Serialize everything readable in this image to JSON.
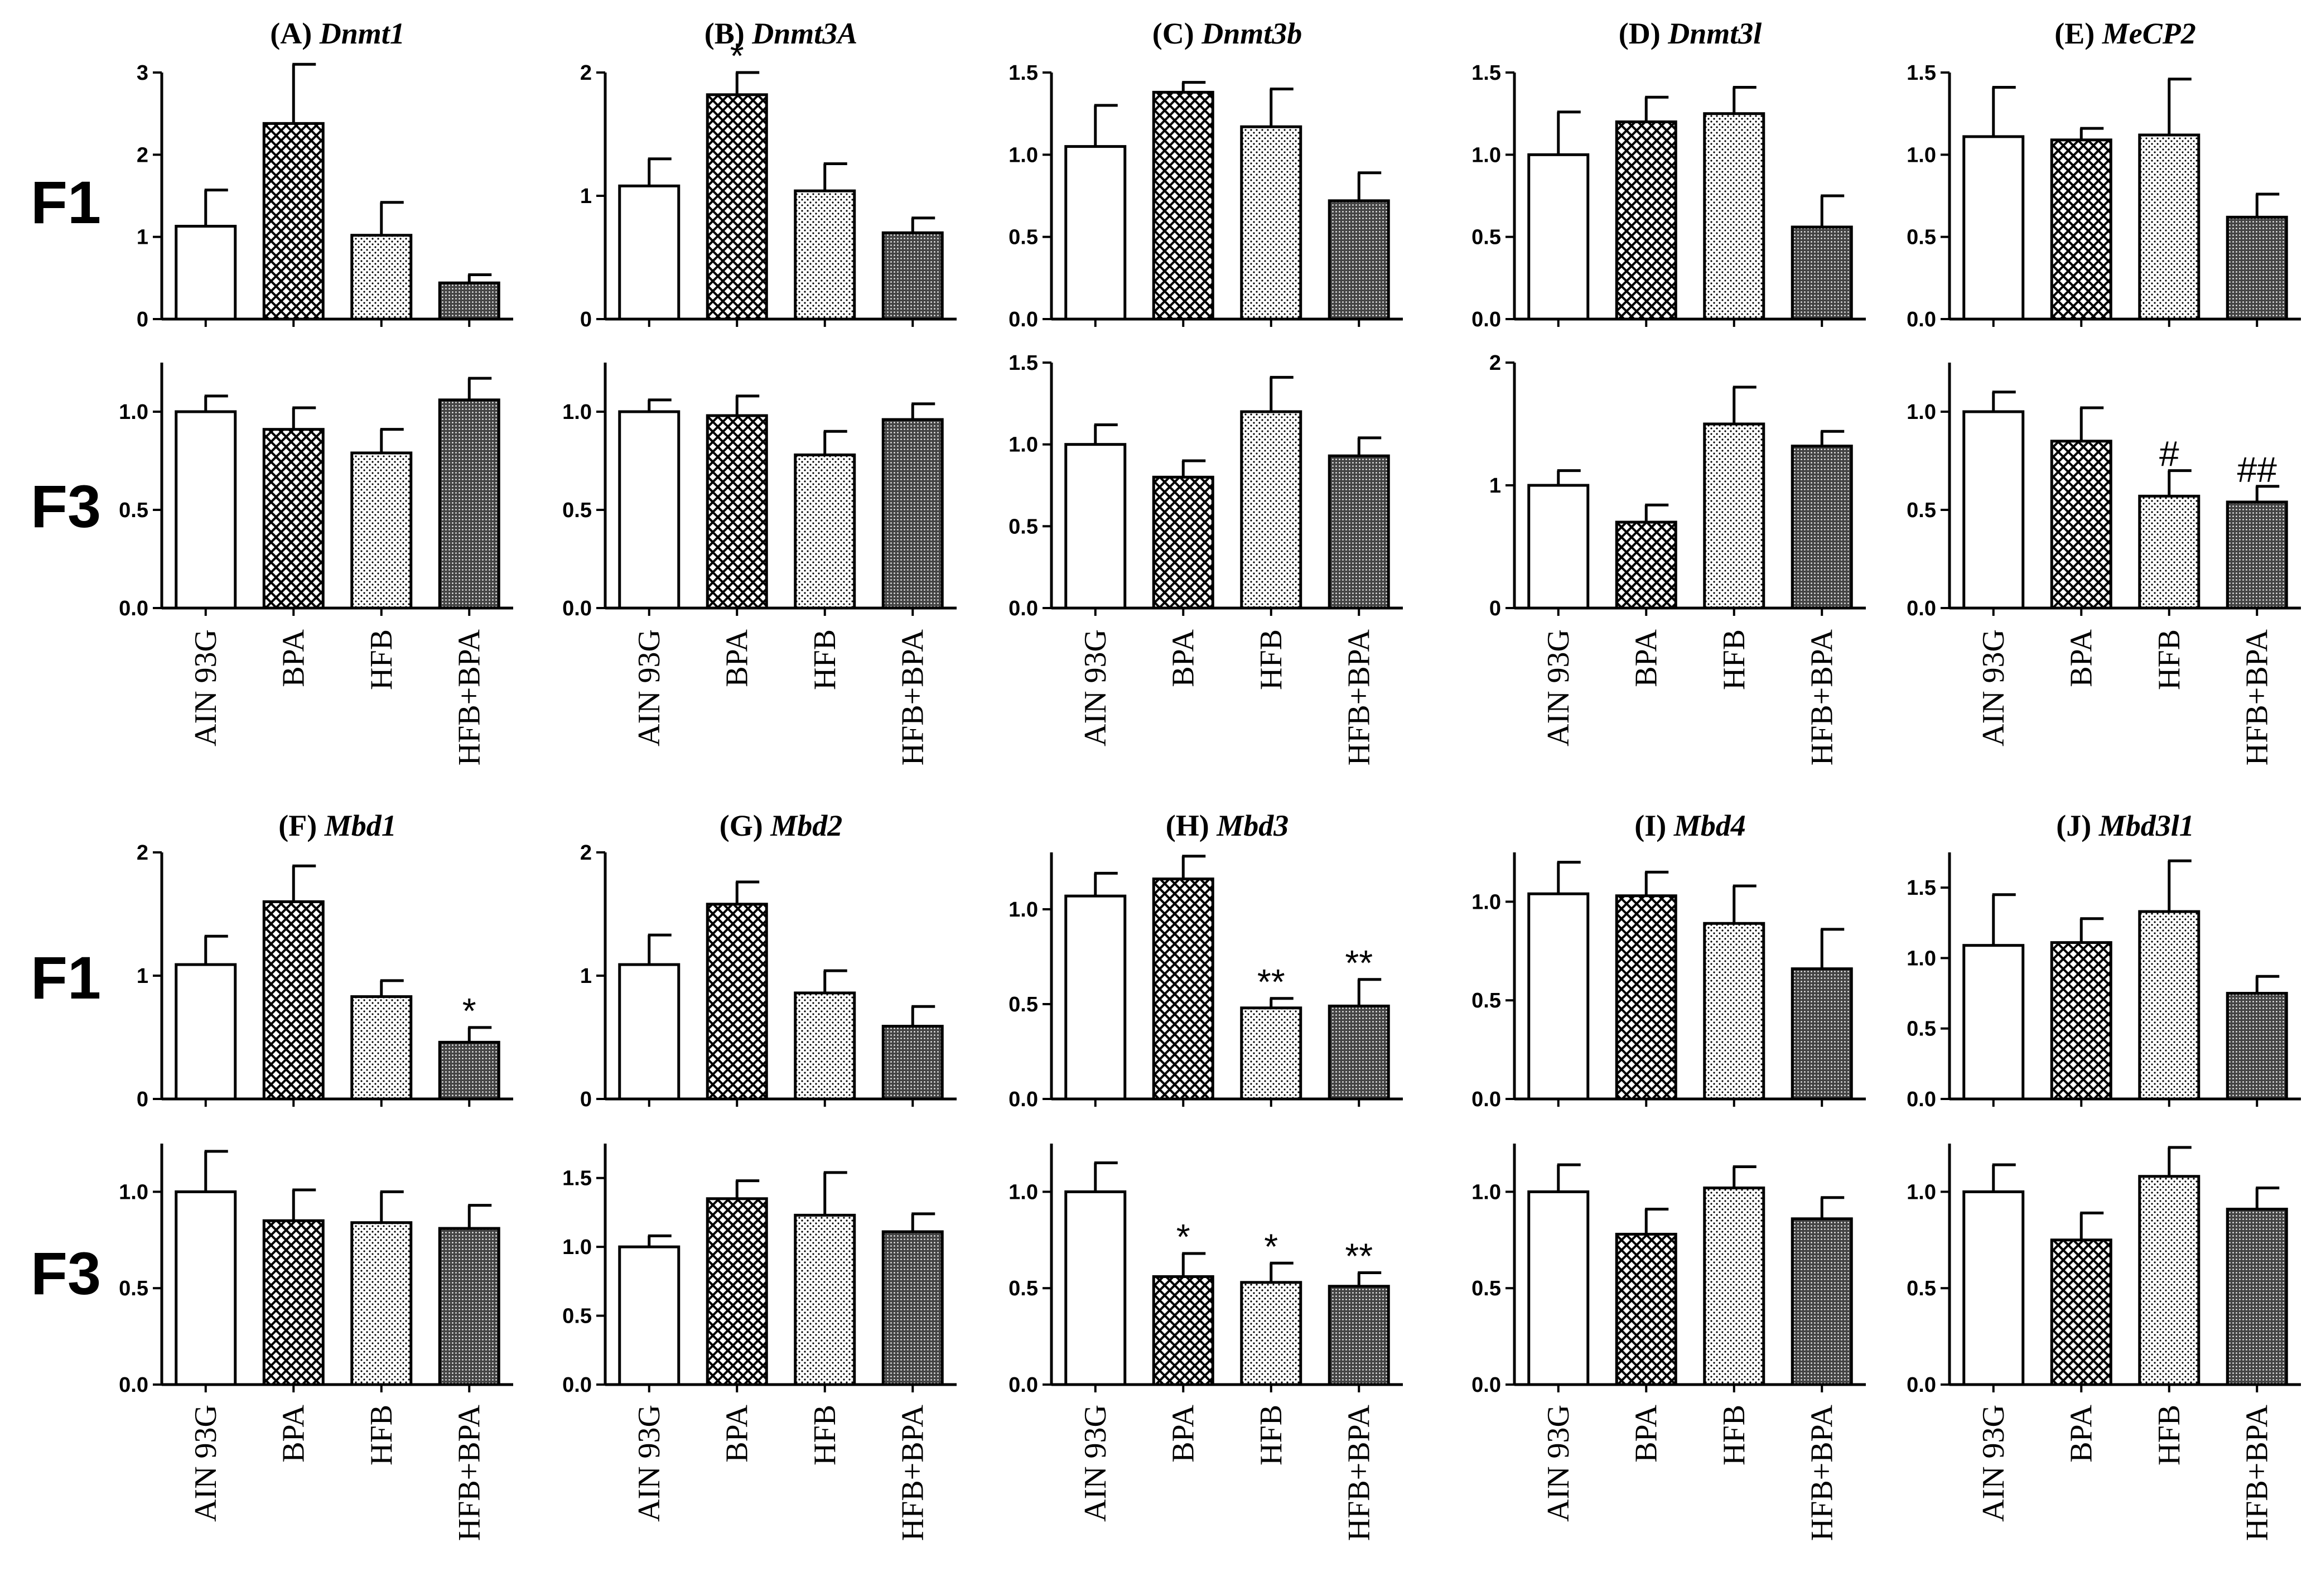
{
  "chart_data": {
    "type": "bar",
    "categories": [
      "AIN 93G",
      "BPA",
      "HFB",
      "HFB+BPA"
    ],
    "row_labels": [
      "F1",
      "F3",
      "F1",
      "F3"
    ],
    "panels": [
      {
        "id": "A",
        "prefix": "(A)",
        "gene": "Dnmt1",
        "rows": [
          {
            "gen": "F1",
            "ylim": [
              0,
              3
            ],
            "ticks": [
              "0",
              "1",
              "2",
              "3"
            ],
            "values": [
              1.13,
              2.38,
              1.02,
              0.44
            ],
            "errors": [
              0.44,
              0.72,
              0.4,
              0.1
            ],
            "annotations": [
              "",
              "",
              "",
              ""
            ]
          },
          {
            "gen": "F3",
            "ylim": [
              0,
              1.25
            ],
            "ticks": [
              "0.0",
              "0.5",
              "1.0"
            ],
            "values": [
              1.0,
              0.91,
              0.79,
              1.06
            ],
            "errors": [
              0.08,
              0.11,
              0.12,
              0.11
            ],
            "annotations": [
              "",
              "",
              "",
              ""
            ]
          }
        ]
      },
      {
        "id": "B",
        "prefix": "(B)",
        "gene": "Dnmt3A",
        "rows": [
          {
            "gen": "F1",
            "ylim": [
              0,
              2
            ],
            "ticks": [
              "0",
              "1",
              "2"
            ],
            "values": [
              1.08,
              1.82,
              1.04,
              0.7
            ],
            "errors": [
              0.22,
              0.18,
              0.22,
              0.12
            ],
            "annotations": [
              "",
              "*",
              "",
              ""
            ]
          },
          {
            "gen": "F3",
            "ylim": [
              0,
              1.25
            ],
            "ticks": [
              "0.0",
              "0.5",
              "1.0"
            ],
            "values": [
              1.0,
              0.98,
              0.78,
              0.96
            ],
            "errors": [
              0.06,
              0.1,
              0.12,
              0.08
            ],
            "annotations": [
              "",
              "",
              "",
              ""
            ]
          }
        ]
      },
      {
        "id": "C",
        "prefix": "(C)",
        "gene": "Dnmt3b",
        "rows": [
          {
            "gen": "F1",
            "ylim": [
              0,
              1.5
            ],
            "ticks": [
              "0.0",
              "0.5",
              "1.0",
              "1.5"
            ],
            "values": [
              1.05,
              1.38,
              1.17,
              0.72
            ],
            "errors": [
              0.25,
              0.06,
              0.23,
              0.17
            ],
            "annotations": [
              "",
              "",
              "",
              ""
            ]
          },
          {
            "gen": "F3",
            "ylim": [
              0,
              1.5
            ],
            "ticks": [
              "0.0",
              "0.5",
              "1.0",
              "1.5"
            ],
            "values": [
              1.0,
              0.8,
              1.2,
              0.93
            ],
            "errors": [
              0.12,
              0.1,
              0.21,
              0.11
            ],
            "annotations": [
              "",
              "",
              "",
              ""
            ]
          }
        ]
      },
      {
        "id": "D",
        "prefix": "(D)",
        "gene": "Dnmt3l",
        "rows": [
          {
            "gen": "F1",
            "ylim": [
              0,
              1.5
            ],
            "ticks": [
              "0.0",
              "0.5",
              "1.0",
              "1.5"
            ],
            "values": [
              1.0,
              1.2,
              1.25,
              0.56
            ],
            "errors": [
              0.26,
              0.15,
              0.16,
              0.19
            ],
            "annotations": [
              "",
              "",
              "",
              ""
            ]
          },
          {
            "gen": "F3",
            "ylim": [
              0,
              2
            ],
            "ticks": [
              "0",
              "1",
              "2"
            ],
            "values": [
              1.0,
              0.7,
              1.5,
              1.32
            ],
            "errors": [
              0.12,
              0.14,
              0.3,
              0.12
            ],
            "annotations": [
              "",
              "",
              "",
              ""
            ]
          }
        ]
      },
      {
        "id": "E",
        "prefix": "(E)",
        "gene": "MeCP2",
        "rows": [
          {
            "gen": "F1",
            "ylim": [
              0,
              1.5
            ],
            "ticks": [
              "0.0",
              "0.5",
              "1.0",
              "1.5"
            ],
            "values": [
              1.11,
              1.09,
              1.12,
              0.62
            ],
            "errors": [
              0.3,
              0.07,
              0.34,
              0.14
            ],
            "annotations": [
              "",
              "",
              "",
              ""
            ]
          },
          {
            "gen": "F3",
            "ylim": [
              0,
              1.25
            ],
            "ticks": [
              "0.0",
              "0.5",
              "1.0"
            ],
            "values": [
              1.0,
              0.85,
              0.57,
              0.54
            ],
            "errors": [
              0.1,
              0.17,
              0.13,
              0.08
            ],
            "annotations": [
              "",
              "",
              "#",
              "##"
            ]
          }
        ]
      },
      {
        "id": "F",
        "prefix": "(F)",
        "gene": "Mbd1",
        "rows": [
          {
            "gen": "F1",
            "ylim": [
              0,
              2
            ],
            "ticks": [
              "0",
              "1",
              "2"
            ],
            "values": [
              1.09,
              1.6,
              0.83,
              0.46
            ],
            "errors": [
              0.23,
              0.29,
              0.13,
              0.12
            ],
            "annotations": [
              "",
              "",
              "",
              "*"
            ]
          },
          {
            "gen": "F3",
            "ylim": [
              0,
              1.25
            ],
            "ticks": [
              "0.0",
              "0.5",
              "1.0"
            ],
            "values": [
              1.0,
              0.85,
              0.84,
              0.81
            ],
            "errors": [
              0.21,
              0.16,
              0.16,
              0.12
            ],
            "annotations": [
              "",
              "",
              "",
              ""
            ]
          }
        ]
      },
      {
        "id": "G",
        "prefix": "(G)",
        "gene": "Mbd2",
        "rows": [
          {
            "gen": "F1",
            "ylim": [
              0,
              2
            ],
            "ticks": [
              "0",
              "1",
              "2"
            ],
            "values": [
              1.09,
              1.58,
              0.86,
              0.59
            ],
            "errors": [
              0.24,
              0.18,
              0.18,
              0.16
            ],
            "annotations": [
              "",
              "",
              "",
              ""
            ]
          },
          {
            "gen": "F3",
            "ylim": [
              0,
              1.75
            ],
            "ticks": [
              "0.0",
              "0.5",
              "1.0",
              "1.5"
            ],
            "values": [
              1.0,
              1.35,
              1.23,
              1.11
            ],
            "errors": [
              0.08,
              0.13,
              0.31,
              0.13
            ],
            "annotations": [
              "",
              "",
              "",
              ""
            ]
          }
        ]
      },
      {
        "id": "H",
        "prefix": "(H)",
        "gene": "Mbd3",
        "rows": [
          {
            "gen": "F1",
            "ylim": [
              0,
              1.3
            ],
            "ticks": [
              "0.0",
              "0.5",
              "1.0"
            ],
            "values": [
              1.07,
              1.16,
              0.48,
              0.49
            ],
            "errors": [
              0.12,
              0.12,
              0.05,
              0.14
            ],
            "annotations": [
              "",
              "",
              "**",
              "**"
            ]
          },
          {
            "gen": "F3",
            "ylim": [
              0,
              1.25
            ],
            "ticks": [
              "0.0",
              "0.5",
              "1.0"
            ],
            "values": [
              1.0,
              0.56,
              0.53,
              0.51
            ],
            "errors": [
              0.15,
              0.12,
              0.1,
              0.07
            ],
            "annotations": [
              "",
              "*",
              "*",
              "**"
            ]
          }
        ]
      },
      {
        "id": "I",
        "prefix": "(I)",
        "gene": "Mbd4",
        "rows": [
          {
            "gen": "F1",
            "ylim": [
              0,
              1.25
            ],
            "ticks": [
              "0.0",
              "0.5",
              "1.0"
            ],
            "values": [
              1.04,
              1.03,
              0.89,
              0.66
            ],
            "errors": [
              0.16,
              0.12,
              0.19,
              0.2
            ],
            "annotations": [
              "",
              "",
              "",
              ""
            ]
          },
          {
            "gen": "F3",
            "ylim": [
              0,
              1.25
            ],
            "ticks": [
              "0.0",
              "0.5",
              "1.0"
            ],
            "values": [
              1.0,
              0.78,
              1.02,
              0.86
            ],
            "errors": [
              0.14,
              0.13,
              0.11,
              0.11
            ],
            "annotations": [
              "",
              "",
              "",
              ""
            ]
          }
        ]
      },
      {
        "id": "J",
        "prefix": "(J)",
        "gene": "Mbd3l1",
        "rows": [
          {
            "gen": "F1",
            "ylim": [
              0,
              1.75
            ],
            "ticks": [
              "0.0",
              "0.5",
              "1.0",
              "1.5"
            ],
            "values": [
              1.09,
              1.11,
              1.33,
              0.75
            ],
            "errors": [
              0.36,
              0.17,
              0.36,
              0.12
            ],
            "annotations": [
              "",
              "",
              "",
              ""
            ]
          },
          {
            "gen": "F3",
            "ylim": [
              0,
              1.25
            ],
            "ticks": [
              "0.0",
              "0.5",
              "1.0"
            ],
            "values": [
              1.0,
              0.75,
              1.08,
              0.91
            ],
            "errors": [
              0.14,
              0.14,
              0.15,
              0.11
            ],
            "annotations": [
              "",
              "",
              "",
              ""
            ]
          }
        ]
      }
    ]
  }
}
